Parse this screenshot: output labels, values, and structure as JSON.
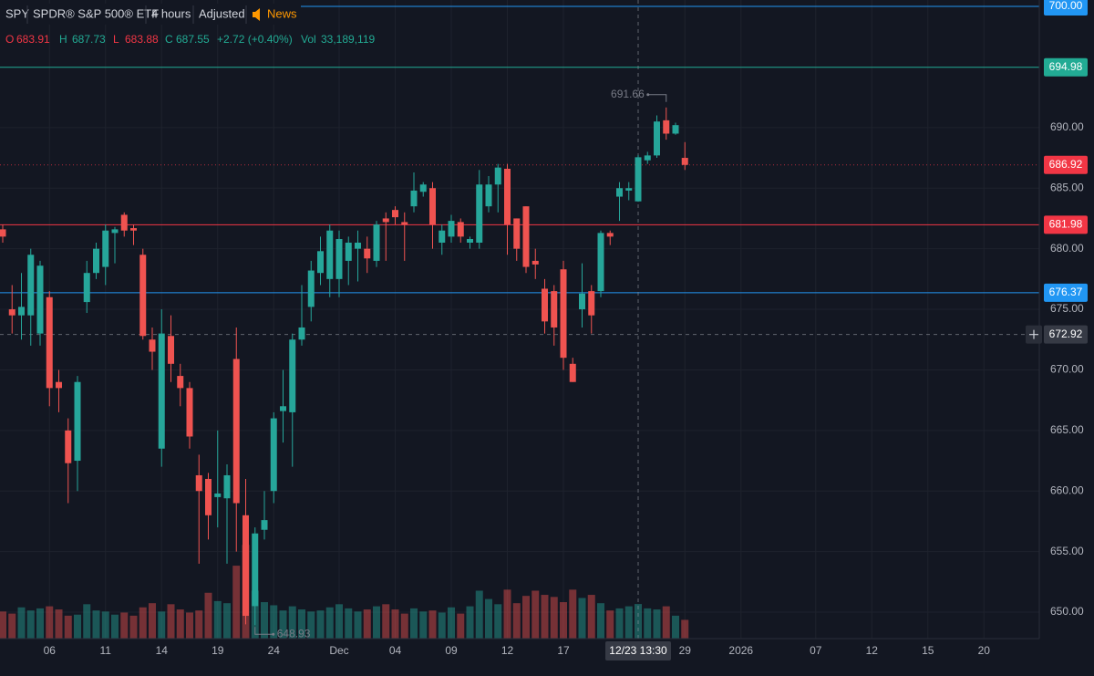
{
  "header": {
    "symbol": "SPY",
    "name": "SPDR® S&P 500® ETF",
    "interval": "4 hours",
    "adjustment": "Adjusted",
    "news": "News"
  },
  "legend": {
    "open_label": "O",
    "open": "683.91",
    "high_label": "H",
    "high": "687.73",
    "low_label": "L",
    "low": "683.88",
    "close_label": "C",
    "close": "687.55",
    "change": "+2.72 (+0.40%)",
    "volume_label": "Vol",
    "volume": "33,189,119"
  },
  "chart_data": {
    "type": "candlestick",
    "up_color": "#26a69a",
    "down_color": "#ef5350",
    "grid": true,
    "categories": [
      null,
      null,
      null,
      null,
      null,
      "06",
      null,
      null,
      null,
      null,
      null,
      "11",
      null,
      null,
      null,
      null,
      null,
      "14",
      null,
      null,
      null,
      null,
      null,
      "19",
      null,
      null,
      null,
      null,
      null,
      "24",
      null,
      null,
      null,
      null,
      null,
      null,
      "Dec",
      null,
      null,
      null,
      null,
      null,
      "04",
      null,
      null,
      null,
      null,
      null,
      "09",
      null,
      null,
      null,
      null,
      null,
      "12",
      null,
      null,
      null,
      null,
      null,
      "17",
      null,
      null,
      null,
      null,
      null,
      null,
      null,
      null,
      null,
      null,
      null,
      null,
      "29",
      null,
      null,
      null,
      null,
      null,
      "2026",
      null,
      null,
      null,
      null,
      null,
      null,
      null,
      "07",
      null,
      null,
      null,
      null,
      null,
      "12",
      null,
      null,
      null,
      null,
      null,
      "15",
      null,
      null,
      null,
      null,
      null,
      "20",
      null,
      null,
      null,
      null,
      null
    ],
    "open": [
      681.6,
      675,
      674.5,
      674.5,
      673,
      676,
      669,
      665,
      662.5,
      675.6,
      678,
      678.5,
      681.3,
      682.8,
      681.7,
      679.5,
      672.5,
      663.5,
      672.8,
      669.5,
      668.5,
      661.3,
      661,
      659.5,
      659.4,
      670.9,
      658,
      650.5,
      656.8,
      660,
      666.6,
      666.5,
      672.5,
      675.2,
      678,
      677.5,
      677.5,
      679,
      680,
      680,
      679,
      682.5,
      683.2,
      682.2,
      683.5,
      684.7,
      685,
      680.5,
      681,
      682.2,
      680.5,
      680.5,
      683.5,
      685.3,
      686.6,
      682.5,
      683.5,
      679,
      676.7,
      676.5,
      678.3,
      670.5,
      675,
      676.5,
      676.5,
      681.3,
      684.3,
      684.8,
      683.91,
      687.3,
      687.7,
      690.6,
      689.5,
      687.5,
      null,
      null,
      null,
      null,
      null,
      null,
      null,
      null,
      null,
      null,
      null,
      null,
      null,
      null,
      null,
      null,
      null,
      null,
      null,
      null,
      null,
      null,
      null,
      null,
      null,
      null,
      null,
      null,
      null,
      null,
      null,
      null,
      null,
      null,
      null,
      null,
      null
    ],
    "high": [
      682,
      677,
      678,
      680,
      679,
      676.5,
      670,
      666,
      669.5,
      679,
      680.5,
      682,
      681.8,
      683,
      682,
      680,
      673.5,
      675,
      674.5,
      670.5,
      669,
      663,
      661.5,
      665,
      662.2,
      673.5,
      661,
      657,
      660,
      666.5,
      670,
      673,
      677,
      679,
      681,
      682,
      681.5,
      681,
      681.5,
      681,
      682.3,
      683,
      683.5,
      683,
      686.3,
      685.5,
      685.5,
      682,
      682.8,
      682.5,
      681,
      686.5,
      686,
      687,
      687,
      682.5,
      683.5,
      680,
      677.5,
      677,
      679,
      671,
      678.8,
      677,
      681.5,
      681.5,
      685.5,
      685.5,
      687.73,
      688,
      691,
      691.66,
      690.4,
      688.8,
      null,
      null,
      null,
      null,
      null,
      null,
      null,
      null,
      null,
      null,
      null,
      null,
      null,
      null,
      null,
      null,
      null,
      null,
      null,
      null,
      null,
      null,
      null,
      null,
      null,
      null,
      null,
      null,
      null,
      null,
      null,
      null,
      null,
      null,
      null,
      null,
      null
    ],
    "low": [
      680.5,
      673,
      672.5,
      672,
      672,
      667,
      666.5,
      659,
      660,
      674.7,
      677.5,
      677,
      678.8,
      681,
      680.3,
      672.5,
      670,
      662,
      669,
      667,
      663.5,
      654,
      656,
      657,
      654,
      655,
      649,
      648.93,
      656,
      659,
      664,
      662,
      672,
      674,
      677,
      676,
      676,
      677,
      677.3,
      678,
      678.5,
      679,
      682,
      679,
      683,
      684.3,
      680,
      679.5,
      680.5,
      680.5,
      680,
      680,
      683,
      683,
      679.5,
      679,
      678,
      677.5,
      673,
      672,
      670,
      669,
      673.5,
      673,
      676,
      680.3,
      682.3,
      684,
      683.88,
      687,
      687.5,
      689,
      689.4,
      686.5,
      null,
      null,
      null,
      null,
      null,
      null,
      null,
      null,
      null,
      null,
      null,
      null,
      null,
      null,
      null,
      null,
      null,
      null,
      null,
      null,
      null,
      null,
      null,
      null,
      null,
      null,
      null,
      null,
      null,
      null,
      null,
      null,
      null,
      null,
      null,
      null,
      null
    ],
    "close": [
      681,
      674.5,
      675.2,
      679.5,
      678.6,
      668.5,
      668.5,
      662.3,
      669,
      678,
      680,
      681.5,
      681.6,
      681.5,
      681.5,
      672.8,
      671.5,
      673,
      670.5,
      668.5,
      664.5,
      660,
      658,
      659.8,
      661.3,
      659,
      649.7,
      656.5,
      657.6,
      666,
      667,
      672.5,
      673.5,
      678.2,
      679.8,
      681.5,
      680.8,
      680.5,
      680.5,
      679.2,
      682,
      682.2,
      682.6,
      682,
      684.8,
      685.3,
      682,
      681.5,
      682.3,
      681,
      680.8,
      685.3,
      685.3,
      686.7,
      682,
      680,
      678.5,
      678.7,
      674,
      673.5,
      671,
      669,
      676.3,
      674.5,
      681.3,
      681,
      685,
      685,
      687.55,
      687.7,
      690.5,
      689.5,
      690.2,
      686.92,
      null,
      null,
      null,
      null,
      null,
      null,
      null,
      null,
      null,
      null,
      null,
      null,
      null,
      null,
      null,
      null,
      null,
      null,
      null,
      null,
      null,
      null,
      null,
      null,
      null,
      null,
      null,
      null,
      null,
      null,
      null,
      null,
      null,
      null,
      null,
      null,
      null
    ],
    "volume": [
      26,
      24,
      30,
      27,
      29,
      31,
      28,
      22,
      23,
      33,
      27,
      26,
      23,
      25,
      22,
      30,
      34,
      26,
      33,
      28,
      25,
      27,
      44,
      36,
      34,
      70,
      90,
      46,
      35,
      32,
      27,
      31,
      28,
      26,
      27,
      30,
      33,
      29,
      26,
      28,
      31,
      33,
      28,
      24,
      29,
      26,
      27,
      25,
      30,
      24,
      31,
      46,
      38,
      33,
      47,
      34,
      41,
      46,
      42,
      40,
      35,
      47,
      39,
      42,
      34,
      27,
      29,
      31,
      33.19,
      29,
      28,
      31,
      22,
      18,
      null,
      null,
      null,
      null,
      null,
      null,
      null,
      null,
      null,
      null,
      null,
      null,
      null,
      null,
      null,
      null,
      null,
      null,
      null,
      null,
      null,
      null,
      null,
      null,
      null,
      null,
      null,
      null,
      null,
      null,
      null,
      null,
      null,
      null,
      null,
      null,
      null
    ],
    "volume_lim": [
      0,
      120
    ],
    "ylim": [
      647.82,
      700.53
    ],
    "yticks": [
      {
        "value": 650,
        "label": "650.00"
      },
      {
        "value": 655,
        "label": "655.00"
      },
      {
        "value": 660,
        "label": "660.00"
      },
      {
        "value": 665,
        "label": "665.00"
      },
      {
        "value": 670,
        "label": "670.00"
      },
      {
        "value": 675,
        "label": "675.00"
      },
      {
        "value": 680,
        "label": "680.00"
      },
      {
        "value": 685,
        "label": "685.00"
      },
      {
        "value": 690,
        "label": "690.00"
      }
    ],
    "price_lines": [
      {
        "value": 700,
        "label": "700.00",
        "color": "#2196f3",
        "style": "solid"
      },
      {
        "value": 694.98,
        "label": "694.98",
        "color": "#22ab94",
        "style": "solid"
      },
      {
        "value": 686.92,
        "label": "686.92",
        "color": "#f23645",
        "style": "dotted"
      },
      {
        "value": 681.98,
        "label": "681.98",
        "color": "#f23645",
        "style": "solid"
      },
      {
        "value": 676.37,
        "label": "676.37",
        "color": "#2196f3",
        "style": "solid"
      }
    ],
    "crosshair": {
      "price": {
        "value": 672.92,
        "label": "672.92"
      },
      "time_label": "12/23 13:30"
    },
    "high_marker": {
      "value": 691.66,
      "label": "691.66"
    },
    "low_marker": {
      "value": 648.93,
      "label": "648.93"
    }
  }
}
